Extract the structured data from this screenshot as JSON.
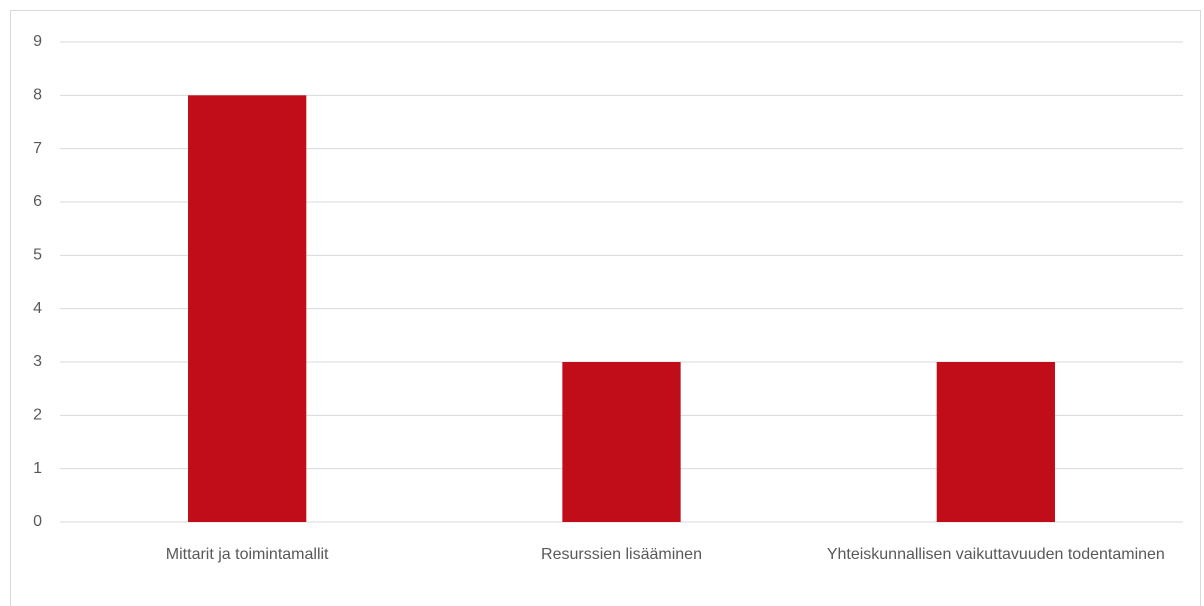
{
  "chart_data": {
    "type": "bar",
    "categories": [
      "Mittarit ja toimintamallit",
      "Resurssien lisääminen",
      "Yhteiskunnallisen vaikuttavuuden todentaminen"
    ],
    "values": [
      8,
      3,
      3
    ],
    "color": "#c00d19",
    "ylim": [
      0,
      9
    ],
    "yticks": [
      0,
      1,
      2,
      3,
      4,
      5,
      6,
      7,
      8,
      9
    ],
    "grid": true
  }
}
